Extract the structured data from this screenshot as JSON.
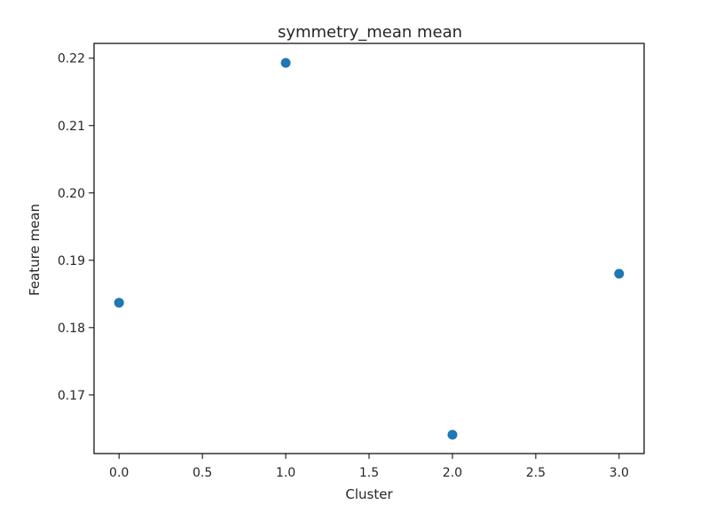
{
  "chart_data": {
    "type": "scatter",
    "title": "symmetry_mean mean",
    "xlabel": "Cluster",
    "ylabel": "Feature mean",
    "x": [
      0.0,
      1.0,
      2.0,
      3.0
    ],
    "y": [
      0.1837,
      0.2193,
      0.1641,
      0.188
    ],
    "xlim": [
      -0.15,
      3.15
    ],
    "ylim": [
      0.1613,
      0.2222
    ],
    "x_ticks": [
      0.0,
      0.5,
      1.0,
      1.5,
      2.0,
      2.5,
      3.0
    ],
    "x_tick_labels": [
      "0.0",
      "0.5",
      "1.0",
      "1.5",
      "2.0",
      "2.5",
      "3.0"
    ],
    "y_ticks": [
      0.17,
      0.18,
      0.19,
      0.2,
      0.21,
      0.22
    ],
    "y_tick_labels": [
      "0.17",
      "0.18",
      "0.19",
      "0.20",
      "0.21",
      "0.22"
    ],
    "grid": false,
    "legend": "none",
    "colors": {
      "marker": "#1f77b4",
      "axes": "#000000",
      "text": "#262626"
    }
  }
}
